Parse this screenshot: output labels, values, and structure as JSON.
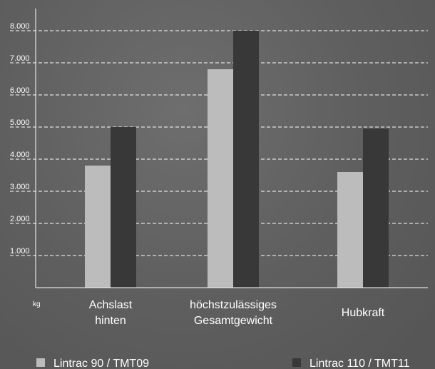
{
  "chart_data": {
    "type": "bar",
    "categories": [
      [
        "Achslast",
        "hinten"
      ],
      [
        "höchstzulässiges",
        "Gesamtgewicht"
      ],
      [
        "Hubkraft"
      ]
    ],
    "series": [
      {
        "name": "Lintrac 90 / TMT09",
        "values": [
          3800,
          6800,
          3600
        ],
        "color": "#bcbcbc"
      },
      {
        "name": "Lintrac 110 / TMT11",
        "values": [
          5000,
          8000,
          4950
        ],
        "color": "#383838"
      }
    ],
    "yticks": [
      1000,
      2000,
      3000,
      4000,
      5000,
      6000,
      7000,
      8000
    ],
    "ytick_labels": [
      "1.000",
      "2.000",
      "3.000",
      "4.000",
      "5.000",
      "6.000",
      "7.000",
      "8.000"
    ],
    "ylabel": "kg",
    "ylim": [
      0,
      8000
    ],
    "grid": true,
    "legend": "bottom"
  }
}
